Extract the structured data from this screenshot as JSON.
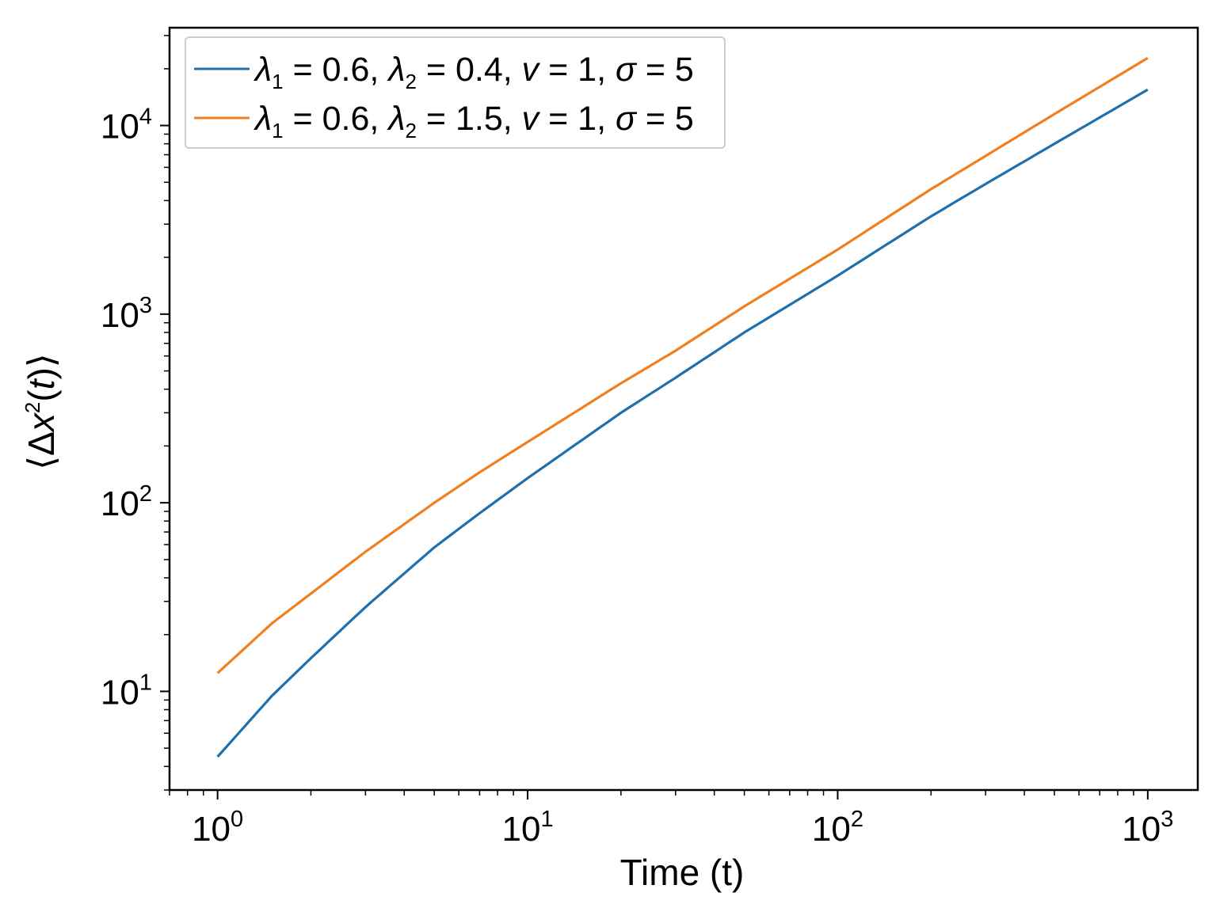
{
  "chart_data": {
    "type": "line",
    "title": "",
    "xlabel": "Time (t)",
    "ylabel": "⟨Δx²(t)⟩",
    "xscale": "log",
    "yscale": "log",
    "xlim": [
      0.7,
      1450
    ],
    "ylim": [
      3.0,
      33000
    ],
    "grid": false,
    "legend_position": "top-left",
    "x_tick_labels": [
      {
        "value": 1,
        "base": "10",
        "exp": "0"
      },
      {
        "value": 10,
        "base": "10",
        "exp": "1"
      },
      {
        "value": 100,
        "base": "10",
        "exp": "2"
      },
      {
        "value": 1000,
        "base": "10",
        "exp": "3"
      }
    ],
    "y_tick_labels": [
      {
        "value": 10,
        "base": "10",
        "exp": "1"
      },
      {
        "value": 100,
        "base": "10",
        "exp": "2"
      },
      {
        "value": 1000,
        "base": "10",
        "exp": "3"
      },
      {
        "value": 10000,
        "base": "10",
        "exp": "4"
      }
    ],
    "series": [
      {
        "name": "λ1 = 0.6, λ2 = 0.4, v = 1, σ = 5",
        "color": "#1f6fad",
        "x": [
          1,
          1.5,
          2,
          3,
          5,
          7,
          10,
          20,
          30,
          50,
          100,
          200,
          300,
          500,
          1000
        ],
        "y": [
          4.5,
          9.5,
          15,
          28,
          58,
          88,
          135,
          300,
          460,
          800,
          1600,
          3300,
          4900,
          8000,
          15500
        ]
      },
      {
        "name": "λ1 = 0.6, λ2 = 1.5, v = 1, σ = 5",
        "color": "#f07f1e",
        "x": [
          1,
          1.5,
          2,
          3,
          5,
          7,
          10,
          20,
          30,
          50,
          100,
          200,
          300,
          500,
          1000
        ],
        "y": [
          12.5,
          23,
          33,
          55,
          100,
          145,
          210,
          430,
          640,
          1100,
          2200,
          4600,
          6900,
          11500,
          22800
        ]
      }
    ],
    "legend": [
      {
        "l1_sym": "λ",
        "l1_sub": "1",
        "l1_val": " = 0.6, ",
        "l2_sym": "λ",
        "l2_sub": "2",
        "l2_val": " = 0.4, ",
        "v_sym": "v",
        "v_val": " = 1, ",
        "s_sym": "σ",
        "s_val": " = 5"
      },
      {
        "l1_sym": "λ",
        "l1_sub": "1",
        "l1_val": " = 0.6, ",
        "l2_sym": "λ",
        "l2_sub": "2",
        "l2_val": " = 1.5, ",
        "v_sym": "v",
        "v_val": " = 1, ",
        "s_sym": "σ",
        "s_val": " = 5"
      }
    ],
    "ylabel_parts": {
      "open": "⟨",
      "delta": "Δ",
      "x": "x",
      "sq": "2",
      "paren_open": "(",
      "t": "t",
      "paren_close": ")",
      "close": "⟩"
    }
  }
}
